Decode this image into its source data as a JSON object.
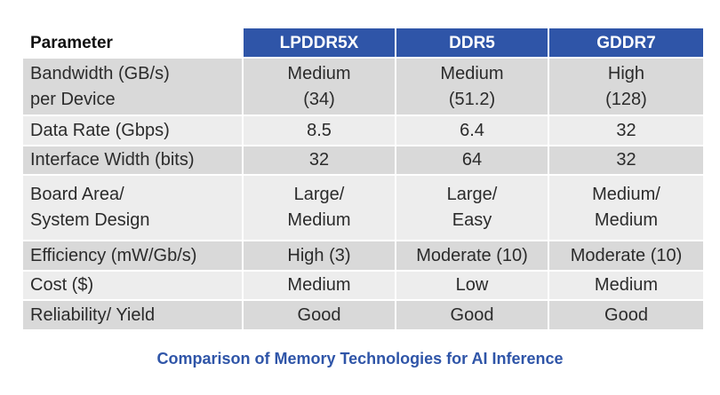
{
  "table": {
    "headers": [
      "Parameter",
      "LPDDR5X",
      "DDR5",
      "GDDR7"
    ],
    "rows": [
      [
        "Bandwidth (GB/s)\nper Device",
        "Medium\n(34)",
        "Medium\n(51.2)",
        "High\n(128)"
      ],
      [
        "Data Rate (Gbps)",
        "8.5",
        "6.4",
        "32"
      ],
      [
        "Interface Width (bits)",
        "32",
        "64",
        "32"
      ],
      [
        "Board Area/\nSystem Design",
        "Large/\nMedium",
        "Large/\nEasy",
        "Medium/\nMedium"
      ],
      [
        "Efficiency (mW/Gb/s)",
        "High (3)",
        "Moderate (10)",
        "Moderate (10)"
      ],
      [
        "Cost ($)",
        "Medium",
        "Low",
        "Medium"
      ],
      [
        "Reliability/ Yield",
        "Good",
        "Good",
        "Good"
      ]
    ]
  },
  "caption": "Comparison of Memory Technologies for AI Inference",
  "colors": {
    "header_bg": "#2f55a8",
    "header_text": "#ffffff",
    "row_dark": "#d9d9d9",
    "row_light": "#ededed",
    "caption": "#2f55a8"
  }
}
